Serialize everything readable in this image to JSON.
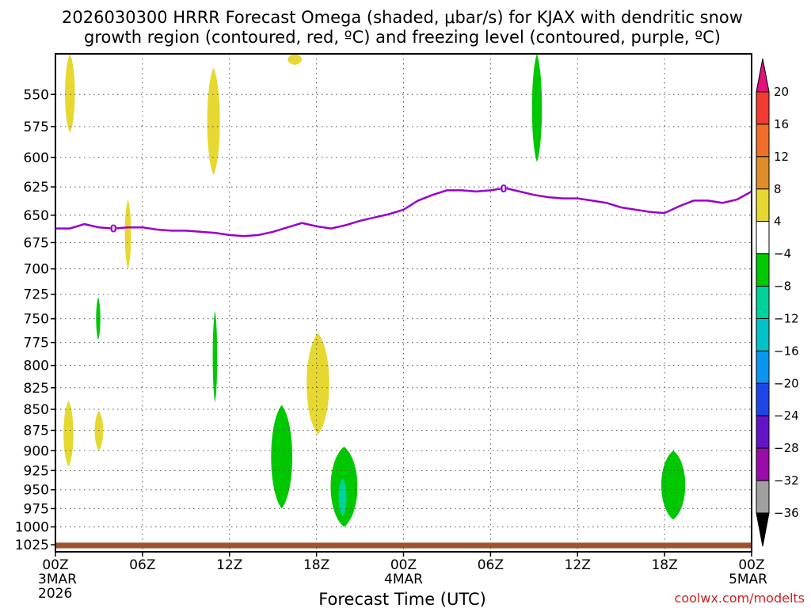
{
  "chart_data": {
    "type": "heatmap",
    "title_lines": [
      "2026030300 HRRR Forecast Omega (shaded, μbar/s) for KJAX with dendritic snow",
      "growth region (contoured, red, ºC) and freezing level (contoured, purple, ºC)"
    ],
    "xlabel": "Forecast Time (UTC)",
    "x_range_hours": [
      0,
      48
    ],
    "x_ticks": [
      {
        "hour": 0,
        "label": "00Z",
        "sub": [
          "3MAR",
          "2026"
        ]
      },
      {
        "hour": 6,
        "label": "06Z",
        "sub": []
      },
      {
        "hour": 12,
        "label": "12Z",
        "sub": []
      },
      {
        "hour": 18,
        "label": "18Z",
        "sub": []
      },
      {
        "hour": 24,
        "label": "00Z",
        "sub": [
          "4MAR"
        ]
      },
      {
        "hour": 30,
        "label": "06Z",
        "sub": []
      },
      {
        "hour": 36,
        "label": "12Z",
        "sub": []
      },
      {
        "hour": 42,
        "label": "18Z",
        "sub": []
      },
      {
        "hour": 48,
        "label": "00Z",
        "sub": [
          "5MAR"
        ]
      }
    ],
    "y_axis": "pressure (mb), log scale",
    "y_range_mb": [
      520,
      1035
    ],
    "y_ticks": [
      550,
      575,
      600,
      625,
      650,
      675,
      700,
      725,
      750,
      775,
      800,
      825,
      850,
      875,
      900,
      925,
      950,
      975,
      1000,
      1025
    ],
    "colorbar": {
      "tick_labels": [
        "20",
        "16",
        "12",
        "8",
        "4",
        "−4",
        "−8",
        "−12",
        "−16",
        "−20",
        "−24",
        "−28",
        "−32",
        "−36"
      ],
      "bands": [
        {
          "range": ">20",
          "color": "#e0107c"
        },
        {
          "range": "16 to 20",
          "color": "#f03c32"
        },
        {
          "range": "12 to 16",
          "color": "#f06e28"
        },
        {
          "range": "8 to 12",
          "color": "#e08c28"
        },
        {
          "range": "4 to 8",
          "color": "#e6d830"
        },
        {
          "range": "-4 to 4",
          "color": "#ffffff"
        },
        {
          "range": "-8 to -4",
          "color": "#00c800"
        },
        {
          "range": "-12 to -8",
          "color": "#00d29b"
        },
        {
          "range": "-16 to -12",
          "color": "#00c3c8"
        },
        {
          "range": "-20 to -16",
          "color": "#0a96f0"
        },
        {
          "range": "-24 to -20",
          "color": "#1e46e6"
        },
        {
          "range": "-28 to -24",
          "color": "#6414c8"
        },
        {
          "range": "-32 to -28",
          "color": "#9b0aaa"
        },
        {
          "range": "-36 to -32",
          "color": "#a0a0a0"
        },
        {
          "range": "<-36",
          "color": "#000000"
        }
      ]
    },
    "omega_regions": [
      {
        "name": "yellow-upper-0z",
        "level": "4 to 8",
        "color": "#e6d830",
        "hour": 1.0,
        "hw": 0.35,
        "p_top": 520,
        "p_bottom": 580
      },
      {
        "name": "yellow-top-16z",
        "level": "4 to 8",
        "color": "#e6d830",
        "hour": 16.5,
        "hw": 0.5,
        "p_top": 520,
        "p_bottom": 528
      },
      {
        "name": "yellow-upper-11z",
        "level": "4 to 8",
        "color": "#e6d830",
        "hour": 10.9,
        "hw": 0.45,
        "p_top": 530,
        "p_bottom": 615
      },
      {
        "name": "yellow-mid-5z",
        "level": "4 to 8",
        "color": "#e6d830",
        "hour": 5.0,
        "hw": 0.22,
        "p_top": 636,
        "p_bottom": 700
      },
      {
        "name": "yellow-mid-18z",
        "level": "4 to 8",
        "color": "#e6d830",
        "hour": 18.1,
        "hw": 0.8,
        "p_top": 765,
        "p_bottom": 880
      },
      {
        "name": "yellow-low-1z",
        "level": "4 to 8",
        "color": "#e6d830",
        "hour": 0.9,
        "hw": 0.35,
        "p_top": 840,
        "p_bottom": 920
      },
      {
        "name": "yellow-low-3z",
        "level": "4 to 8",
        "color": "#e6d830",
        "hour": 3.0,
        "hw": 0.3,
        "p_top": 852,
        "p_bottom": 900
      },
      {
        "name": "green-upper-9z",
        "level": "-8 to -4",
        "color": "#00c800",
        "hour": 33.2,
        "hw": 0.35,
        "p_top": 520,
        "p_bottom": 604
      },
      {
        "name": "green-mid-3z",
        "level": "-8 to -4",
        "color": "#00c800",
        "hour": 2.95,
        "hw": 0.15,
        "p_top": 728,
        "p_bottom": 772
      },
      {
        "name": "green-mid-11z",
        "level": "-8 to -4",
        "color": "#00c800",
        "hour": 11.0,
        "hw": 0.16,
        "p_top": 742,
        "p_bottom": 842
      },
      {
        "name": "green-low-16z",
        "level": "-8 to -4",
        "color": "#00c800",
        "hour": 15.6,
        "hw": 0.75,
        "p_top": 845,
        "p_bottom": 975
      },
      {
        "name": "green-low-19z",
        "level": "-8 to -4",
        "color": "#00c800",
        "hour": 19.9,
        "hw": 0.95,
        "p_top": 895,
        "p_bottom": 1000
      },
      {
        "name": "teal-core-19z",
        "level": "-12 to -8",
        "color": "#00d29b",
        "hour": 19.8,
        "hw": 0.28,
        "p_top": 935,
        "p_bottom": 985
      },
      {
        "name": "green-low-42z",
        "level": "-8 to -4",
        "color": "#00c800",
        "hour": 42.6,
        "hw": 0.85,
        "p_top": 900,
        "p_bottom": 990
      }
    ],
    "freezing_level": {
      "label": "0",
      "color": "#9900cc",
      "label_hours": [
        4,
        30.9
      ],
      "points": [
        [
          0,
          662
        ],
        [
          1,
          662
        ],
        [
          2,
          658
        ],
        [
          3,
          661
        ],
        [
          4,
          662
        ],
        [
          5,
          661
        ],
        [
          6,
          661
        ],
        [
          7,
          663
        ],
        [
          8,
          664
        ],
        [
          9,
          664
        ],
        [
          10,
          665
        ],
        [
          11,
          666
        ],
        [
          12,
          668
        ],
        [
          13,
          669
        ],
        [
          14,
          668
        ],
        [
          15,
          665
        ],
        [
          16,
          661
        ],
        [
          17,
          657
        ],
        [
          18,
          660
        ],
        [
          19,
          662
        ],
        [
          20,
          659
        ],
        [
          21,
          655
        ],
        [
          22,
          652
        ],
        [
          23,
          649
        ],
        [
          24,
          645
        ],
        [
          25,
          637
        ],
        [
          26,
          632
        ],
        [
          27,
          628
        ],
        [
          28,
          628
        ],
        [
          29,
          629
        ],
        [
          30,
          628
        ],
        [
          31,
          626
        ],
        [
          32,
          629
        ],
        [
          33,
          632
        ],
        [
          34,
          634
        ],
        [
          35,
          635
        ],
        [
          36,
          635
        ],
        [
          37,
          637
        ],
        [
          38,
          639
        ],
        [
          39,
          643
        ],
        [
          40,
          645
        ],
        [
          41,
          647
        ],
        [
          42,
          648
        ],
        [
          43,
          642
        ],
        [
          44,
          637
        ],
        [
          45,
          637
        ],
        [
          46,
          639
        ],
        [
          47,
          636
        ],
        [
          48,
          629
        ]
      ]
    },
    "terrain_band": {
      "color": "#a0522d",
      "p_top": 1022,
      "p_bottom": 1030
    },
    "credit": "coolwx.com/modelts"
  }
}
